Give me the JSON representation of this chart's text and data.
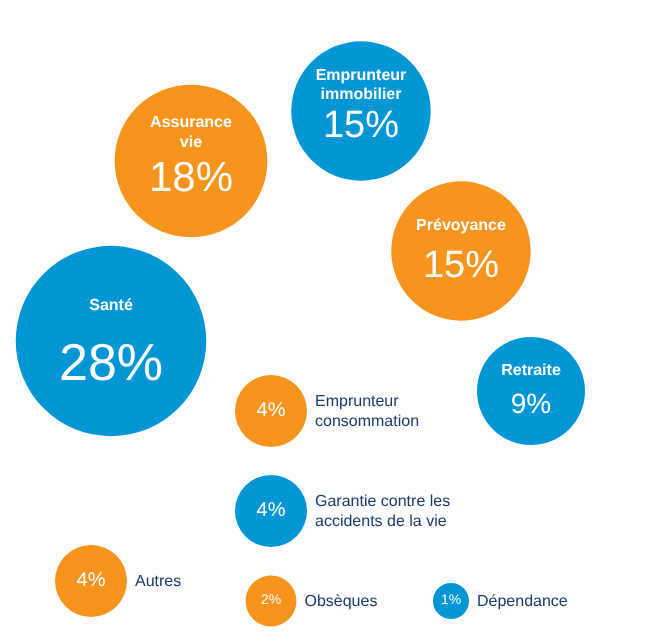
{
  "chart_data": {
    "type": "other",
    "categories": [
      "Santé",
      "Assurance vie",
      "Emprunteur immobilier",
      "Prévoyance",
      "Retraite",
      "Emprunteur consommation",
      "Garantie contre les accidents de la vie",
      "Autres",
      "Obsèques",
      "Dépendance"
    ],
    "values": [
      28,
      18,
      15,
      15,
      9,
      4,
      4,
      4,
      2,
      1
    ],
    "value_labels": [
      "28%",
      "18%",
      "15%",
      "15%",
      "9%",
      "4%",
      "4%",
      "4%",
      "2%",
      "1%"
    ],
    "colors": [
      "#0096d6",
      "#f7941d",
      "#0096d6",
      "#f7941d",
      "#0096d6",
      "#f7941d",
      "#0096d6",
      "#f7941d",
      "#f7941d",
      "#0096d6"
    ]
  }
}
